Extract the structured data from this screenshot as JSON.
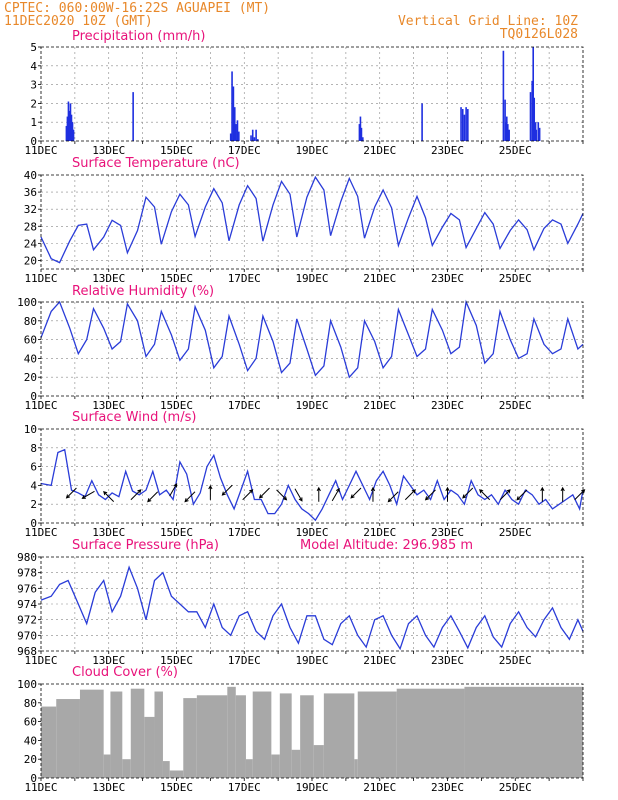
{
  "header": {
    "line1": "CPTEC:   060:00W-16:22S   AGUAPEI (MT)",
    "line2": "11DEC2020 10Z (GMT)",
    "grid_note": "Vertical Grid Line: 10Z",
    "model_code": "TQ0126L028"
  },
  "colors": {
    "header": "#e8882a",
    "title": "#e8127a",
    "line": "#2a3cd8",
    "bar": "#1e2fe0",
    "cloud": "#a8a8a8",
    "wind_arrow": "#000000",
    "grid": "#888888"
  },
  "chart_data": [
    {
      "id": "precip",
      "type": "bar",
      "title": "Precipitation (mm/h)",
      "ylim": [
        0,
        5
      ],
      "yticks": [
        0,
        1,
        2,
        3,
        4,
        5
      ],
      "x_tick_labels": [
        "11DEC",
        "13DEC",
        "15DEC",
        "17DEC",
        "19DEC",
        "21DEC",
        "23DEC",
        "25DEC"
      ],
      "grid": true,
      "x_days": [
        0.75,
        0.78,
        0.81,
        0.84,
        0.87,
        0.9,
        0.93,
        0.96,
        2.72,
        5.6,
        5.64,
        5.68,
        5.72,
        5.76,
        5.8,
        5.84,
        6.2,
        6.25,
        6.3,
        6.35,
        6.4,
        9.4,
        9.43,
        9.46,
        9.5,
        11.25,
        12.4,
        12.45,
        12.5,
        12.55,
        12.6,
        13.65,
        13.7,
        13.72,
        13.75,
        13.78,
        13.82,
        14.45,
        14.5,
        14.53,
        14.56,
        14.6,
        14.62,
        14.68,
        14.72
      ],
      "values": [
        0.8,
        1.3,
        2.1,
        1.6,
        2.0,
        1.4,
        1.0,
        0.6,
        2.6,
        0.4,
        3.7,
        2.9,
        1.8,
        0.9,
        1.1,
        0.5,
        0.3,
        0.6,
        0.2,
        0.6,
        0.1,
        0.9,
        1.3,
        0.7,
        0.2,
        2.0,
        1.8,
        1.7,
        1.4,
        1.8,
        1.7,
        4.8,
        2.2,
        1.0,
        1.3,
        0.9,
        0.6,
        2.6,
        3.2,
        5.0,
        2.3,
        1.0,
        0.6,
        1.0,
        0.7
      ]
    },
    {
      "id": "temperature",
      "type": "line",
      "title": "Surface Temperature (nC)",
      "ylim": [
        18,
        40
      ],
      "yticks": [
        20,
        24,
        28,
        32,
        36,
        40
      ],
      "x_tick_labels": [
        "11DEC",
        "13DEC",
        "15DEC",
        "17DEC",
        "19DEC",
        "21DEC",
        "23DEC",
        "25DEC"
      ],
      "grid": true,
      "x_days": [
        0,
        0.3,
        0.55,
        0.85,
        1.1,
        1.35,
        1.55,
        1.85,
        2.1,
        2.35,
        2.55,
        2.85,
        3.1,
        3.35,
        3.55,
        3.85,
        4.1,
        4.35,
        4.55,
        4.85,
        5.1,
        5.35,
        5.55,
        5.85,
        6.1,
        6.35,
        6.55,
        6.85,
        7.1,
        7.35,
        7.55,
        7.85,
        8.1,
        8.35,
        8.55,
        8.85,
        9.1,
        9.35,
        9.55,
        9.85,
        10.1,
        10.35,
        10.55,
        10.85,
        11.1,
        11.35,
        11.55,
        11.85,
        12.1,
        12.35,
        12.55,
        12.85,
        13.1,
        13.35,
        13.55,
        13.85,
        14.1,
        14.35,
        14.55,
        14.85,
        15.1,
        15.35,
        15.55,
        15.85,
        16
      ],
      "values": [
        25.5,
        20.4,
        19.5,
        24.6,
        28.2,
        28.5,
        22.5,
        25.5,
        29.4,
        28.2,
        21.8,
        27,
        34.8,
        32.5,
        23.8,
        31.4,
        35.5,
        33,
        25.6,
        32.5,
        36.8,
        33.5,
        24.6,
        33,
        37.5,
        34.5,
        24.5,
        33,
        38.5,
        35.5,
        25.5,
        34.8,
        39.5,
        36.5,
        25.8,
        33.8,
        39.2,
        35,
        25.2,
        32.5,
        36.5,
        32.3,
        23.5,
        30,
        35,
        30,
        23.5,
        27.8,
        31,
        29.5,
        23,
        27.5,
        31.2,
        28.5,
        22.8,
        27,
        29.5,
        27.2,
        22.5,
        27.5,
        29.5,
        28.5,
        24,
        28.5,
        31
      ]
    },
    {
      "id": "humidity",
      "type": "line",
      "title": "Relative Humidity (%)",
      "ylim": [
        0,
        100
      ],
      "yticks": [
        0,
        20,
        40,
        60,
        80,
        100
      ],
      "x_tick_labels": [
        "11DEC",
        "13DEC",
        "15DEC",
        "17DEC",
        "19DEC",
        "21DEC",
        "23DEC",
        "25DEC"
      ],
      "grid": true,
      "x_days": [
        0,
        0.3,
        0.55,
        0.85,
        1.1,
        1.35,
        1.55,
        1.85,
        2.1,
        2.35,
        2.55,
        2.85,
        3.1,
        3.35,
        3.55,
        3.85,
        4.1,
        4.35,
        4.55,
        4.85,
        5.1,
        5.35,
        5.55,
        5.85,
        6.1,
        6.35,
        6.55,
        6.85,
        7.1,
        7.35,
        7.55,
        7.85,
        8.1,
        8.35,
        8.55,
        8.85,
        9.1,
        9.35,
        9.55,
        9.85,
        10.1,
        10.35,
        10.55,
        10.85,
        11.1,
        11.35,
        11.55,
        11.85,
        12.1,
        12.35,
        12.55,
        12.85,
        13.1,
        13.35,
        13.55,
        13.85,
        14.1,
        14.35,
        14.55,
        14.85,
        15.1,
        15.35,
        15.55,
        15.85,
        16
      ],
      "values": [
        62,
        90,
        100,
        72,
        45,
        60,
        93,
        72,
        50,
        58,
        98,
        80,
        42,
        55,
        90,
        65,
        38,
        50,
        95,
        70,
        30,
        42,
        85,
        55,
        27,
        40,
        85,
        58,
        25,
        35,
        82,
        50,
        22,
        32,
        80,
        52,
        20,
        30,
        80,
        58,
        30,
        42,
        92,
        65,
        42,
        50,
        92,
        70,
        45,
        52,
        100,
        75,
        35,
        45,
        90,
        60,
        40,
        45,
        82,
        55,
        45,
        50,
        82,
        50,
        55
      ]
    },
    {
      "id": "wind",
      "type": "line",
      "title": "Surface Wind (m/s)",
      "ylim": [
        0,
        10
      ],
      "yticks": [
        0,
        2,
        4,
        6,
        8,
        10
      ],
      "x_tick_labels": [
        "11DEC",
        "13DEC",
        "15DEC",
        "17DEC",
        "19DEC",
        "21DEC",
        "23DEC",
        "25DEC"
      ],
      "grid": true,
      "x_days": [
        0,
        0.3,
        0.5,
        0.7,
        0.9,
        1.1,
        1.3,
        1.5,
        1.7,
        1.9,
        2.1,
        2.3,
        2.5,
        2.7,
        2.9,
        3.1,
        3.3,
        3.5,
        3.7,
        3.9,
        4.1,
        4.3,
        4.5,
        4.7,
        4.9,
        5.1,
        5.3,
        5.5,
        5.7,
        5.9,
        6.1,
        6.3,
        6.5,
        6.7,
        6.9,
        7.1,
        7.3,
        7.5,
        7.7,
        7.9,
        8.1,
        8.3,
        8.5,
        8.7,
        8.9,
        9.1,
        9.3,
        9.5,
        9.7,
        9.9,
        10.1,
        10.3,
        10.5,
        10.7,
        10.9,
        11.1,
        11.3,
        11.5,
        11.7,
        11.9,
        12.1,
        12.3,
        12.5,
        12.7,
        12.9,
        13.1,
        13.3,
        13.5,
        13.7,
        13.9,
        14.1,
        14.3,
        14.5,
        14.7,
        14.9,
        15.1,
        15.3,
        15.5,
        15.7,
        15.9,
        16
      ],
      "values": [
        4.2,
        4.0,
        7.5,
        7.8,
        3.5,
        3.2,
        2.8,
        4.5,
        3.0,
        2.5,
        3.2,
        2.8,
        5.5,
        3.4,
        3.0,
        3.5,
        5.5,
        3.0,
        3.5,
        2.5,
        6.5,
        5.2,
        2.0,
        3.2,
        6.0,
        7.2,
        4.8,
        3.0,
        1.5,
        3.5,
        5.5,
        2.5,
        2.5,
        1.0,
        1.0,
        2.0,
        4.0,
        2.5,
        1.5,
        1.0,
        0.3,
        1.5,
        3.0,
        4.5,
        2.5,
        4.0,
        5.5,
        4.0,
        2.5,
        4.5,
        5.5,
        4.0,
        2.0,
        5.0,
        4.0,
        3.0,
        3.5,
        2.5,
        4.5,
        2.5,
        3.5,
        3.0,
        2.0,
        4.5,
        3.0,
        2.5,
        3.0,
        2.0,
        3.5,
        2.5,
        2.0,
        3.5,
        3.0,
        2.0,
        2.5,
        1.5,
        2.0,
        2.5,
        3.0,
        1.5,
        3.5
      ],
      "arrow_days": [
        0.9,
        1.4,
        2.0,
        2.8,
        3.3,
        3.9,
        4.4,
        5.0,
        5.5,
        6.1,
        6.6,
        7.1,
        7.6,
        8.2,
        8.7,
        9.3,
        9.8,
        10.4,
        10.9,
        11.5,
        12.0,
        12.6,
        13.1,
        13.7,
        14.2,
        14.8,
        15.4,
        15.9
      ],
      "arrow_speeds": [
        3.2,
        3.0,
        2.8,
        3.0,
        2.8,
        3.5,
        2.8,
        3.2,
        3.5,
        3.0,
        3.2,
        3.0,
        3.0,
        3.0,
        3.0,
        3.2,
        3.0,
        2.8,
        3.0,
        3.0,
        3.0,
        3.2,
        3.0,
        3.0,
        3.0,
        3.0,
        3.0,
        3.0
      ],
      "arrow_dirs_deg": [
        225,
        210,
        135,
        45,
        225,
        60,
        225,
        90,
        225,
        45,
        225,
        315,
        300,
        90,
        60,
        225,
        90,
        225,
        45,
        225,
        90,
        225,
        135,
        45,
        225,
        90,
        90,
        45
      ]
    },
    {
      "id": "pressure",
      "type": "line",
      "title": "Surface Pressure (hPa)",
      "annotation": "Model Altitude: 296.985 m",
      "ylim": [
        968,
        980
      ],
      "yticks": [
        968,
        970,
        972,
        974,
        976,
        978,
        980
      ],
      "x_tick_labels": [
        "11DEC",
        "13DEC",
        "15DEC",
        "17DEC",
        "19DEC",
        "21DEC",
        "23DEC",
        "25DEC"
      ],
      "grid": true,
      "x_days": [
        0,
        0.3,
        0.55,
        0.8,
        1.1,
        1.35,
        1.6,
        1.85,
        2.1,
        2.35,
        2.6,
        2.85,
        3.1,
        3.35,
        3.6,
        3.85,
        4.1,
        4.35,
        4.6,
        4.85,
        5.1,
        5.35,
        5.6,
        5.85,
        6.1,
        6.35,
        6.6,
        6.85,
        7.1,
        7.35,
        7.6,
        7.85,
        8.1,
        8.35,
        8.6,
        8.85,
        9.1,
        9.35,
        9.6,
        9.85,
        10.1,
        10.35,
        10.6,
        10.85,
        11.1,
        11.35,
        11.6,
        11.85,
        12.1,
        12.35,
        12.6,
        12.85,
        13.1,
        13.35,
        13.6,
        13.85,
        14.1,
        14.35,
        14.6,
        14.85,
        15.1,
        15.35,
        15.6,
        15.85,
        16
      ],
      "values": [
        974.5,
        975,
        976.5,
        977,
        974,
        971.5,
        975.5,
        977,
        973,
        975,
        978.7,
        976,
        972,
        977,
        978,
        975,
        974,
        973,
        973,
        971,
        974,
        971,
        970,
        972.5,
        973,
        970.5,
        969.5,
        972.5,
        974,
        971,
        969,
        972.5,
        972.5,
        969.5,
        968.8,
        971.5,
        972.5,
        970,
        968.5,
        972,
        972.5,
        970,
        968.3,
        971.5,
        972.5,
        970,
        968.5,
        971,
        972.5,
        970.5,
        968.4,
        971,
        972.5,
        969.8,
        968.5,
        971.5,
        973,
        971,
        969.8,
        972,
        973.5,
        971,
        969.5,
        972,
        970.5
      ]
    },
    {
      "id": "cloud",
      "type": "bar",
      "title": "Cloud Cover (%)",
      "ylim": [
        0,
        100
      ],
      "yticks": [
        0,
        20,
        40,
        60,
        80,
        100
      ],
      "x_tick_labels": [
        "11DEC",
        "13DEC",
        "15DEC",
        "17DEC",
        "19DEC",
        "21DEC",
        "23DEC",
        "25DEC"
      ],
      "grid": false,
      "segments": [
        {
          "from_day": 0.0,
          "to_day": 0.45,
          "value": 76
        },
        {
          "from_day": 0.45,
          "to_day": 1.15,
          "value": 84
        },
        {
          "from_day": 1.15,
          "to_day": 1.85,
          "value": 94
        },
        {
          "from_day": 1.85,
          "to_day": 2.05,
          "value": 25
        },
        {
          "from_day": 2.05,
          "to_day": 2.4,
          "value": 92
        },
        {
          "from_day": 2.4,
          "to_day": 2.65,
          "value": 20
        },
        {
          "from_day": 2.65,
          "to_day": 3.05,
          "value": 95
        },
        {
          "from_day": 3.05,
          "to_day": 3.35,
          "value": 65
        },
        {
          "from_day": 3.35,
          "to_day": 3.6,
          "value": 92
        },
        {
          "from_day": 3.6,
          "to_day": 3.8,
          "value": 18
        },
        {
          "from_day": 3.8,
          "to_day": 4.2,
          "value": 8
        },
        {
          "from_day": 4.2,
          "to_day": 4.6,
          "value": 85
        },
        {
          "from_day": 4.6,
          "to_day": 5.5,
          "value": 88
        },
        {
          "from_day": 5.5,
          "to_day": 5.75,
          "value": 97
        },
        {
          "from_day": 5.75,
          "to_day": 6.05,
          "value": 88
        },
        {
          "from_day": 6.05,
          "to_day": 6.25,
          "value": 20
        },
        {
          "from_day": 6.25,
          "to_day": 6.8,
          "value": 92
        },
        {
          "from_day": 6.8,
          "to_day": 7.05,
          "value": 25
        },
        {
          "from_day": 7.05,
          "to_day": 7.4,
          "value": 90
        },
        {
          "from_day": 7.4,
          "to_day": 7.65,
          "value": 30
        },
        {
          "from_day": 7.65,
          "to_day": 8.05,
          "value": 88
        },
        {
          "from_day": 8.05,
          "to_day": 8.35,
          "value": 35
        },
        {
          "from_day": 8.35,
          "to_day": 9.25,
          "value": 90
        },
        {
          "from_day": 9.25,
          "to_day": 9.35,
          "value": 20
        },
        {
          "from_day": 9.35,
          "to_day": 10.5,
          "value": 92
        },
        {
          "from_day": 10.5,
          "to_day": 12.5,
          "value": 95
        },
        {
          "from_day": 12.5,
          "to_day": 16.0,
          "value": 97
        }
      ]
    }
  ]
}
